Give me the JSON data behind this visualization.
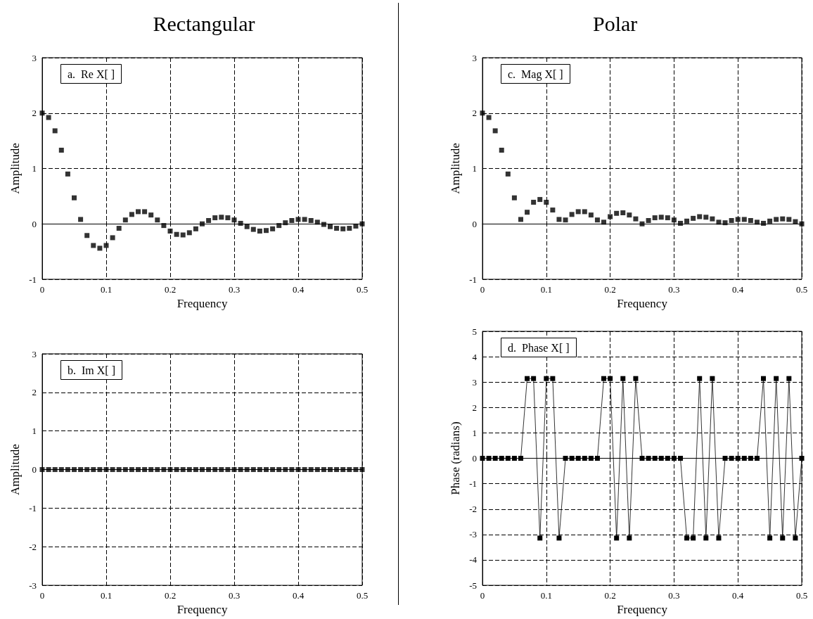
{
  "chart_data": [
    {
      "type": "scatter",
      "title": "a.  Re X[ ]",
      "annotations": [
        "Rectangular"
      ],
      "xlabel": "Frequency",
      "ylabel": "Amplitude",
      "marker": "square",
      "grid": true,
      "color": "#000000",
      "x": [
        0,
        0.01,
        0.02,
        0.03,
        0.04,
        0.05,
        0.06,
        0.07,
        0.08,
        0.09,
        0.1,
        0.11,
        0.12,
        0.13,
        0.14,
        0.15,
        0.16,
        0.17,
        0.18,
        0.19,
        0.2,
        0.21,
        0.22,
        0.23,
        0.24,
        0.25,
        0.26,
        0.27,
        0.28,
        0.29,
        0.3,
        0.31,
        0.32,
        0.33,
        0.34,
        0.35,
        0.36,
        0.37,
        0.38,
        0.39,
        0.4,
        0.41,
        0.42,
        0.43,
        0.44,
        0.45,
        0.46,
        0.47,
        0.48,
        0.49,
        0.5
      ],
      "values": [
        2,
        1.92,
        1.68,
        1.33,
        0.9,
        0.47,
        0.08,
        -0.21,
        -0.39,
        -0.44,
        -0.39,
        -0.25,
        -0.08,
        0.07,
        0.17,
        0.22,
        0.22,
        0.16,
        0.07,
        -0.03,
        -0.13,
        -0.19,
        -0.2,
        -0.16,
        -0.09,
        0,
        0.06,
        0.11,
        0.12,
        0.11,
        0.07,
        0.01,
        -0.05,
        -0.1,
        -0.13,
        -0.12,
        -0.09,
        -0.03,
        0.02,
        0.06,
        0.08,
        0.08,
        0.06,
        0.03,
        -0.01,
        -0.05,
        -0.08,
        -0.09,
        -0.08,
        -0.04,
        0
      ],
      "xlim": [
        0,
        0.5
      ],
      "xticks": [
        0,
        0.1,
        0.2,
        0.3,
        0.4,
        0.5
      ],
      "ylim": [
        -1,
        3
      ],
      "yticks": [
        -1,
        0,
        1,
        2,
        3
      ]
    },
    {
      "type": "scatter",
      "title": "c.  Mag X[ ]",
      "annotations": [
        "Polar"
      ],
      "xlabel": "Frequency",
      "ylabel": "Amplitude",
      "marker": "square",
      "grid": true,
      "color": "#000000",
      "x": [
        0,
        0.01,
        0.02,
        0.03,
        0.04,
        0.05,
        0.06,
        0.07,
        0.08,
        0.09,
        0.1,
        0.11,
        0.12,
        0.13,
        0.14,
        0.15,
        0.16,
        0.17,
        0.18,
        0.19,
        0.2,
        0.21,
        0.22,
        0.23,
        0.24,
        0.25,
        0.26,
        0.27,
        0.28,
        0.29,
        0.3,
        0.31,
        0.32,
        0.33,
        0.34,
        0.35,
        0.36,
        0.37,
        0.38,
        0.39,
        0.4,
        0.41,
        0.42,
        0.43,
        0.44,
        0.45,
        0.46,
        0.47,
        0.48,
        0.49,
        0.5
      ],
      "values": [
        2,
        1.92,
        1.68,
        1.33,
        0.9,
        0.47,
        0.08,
        0.21,
        0.39,
        0.44,
        0.39,
        0.25,
        0.08,
        0.07,
        0.17,
        0.22,
        0.22,
        0.16,
        0.07,
        0.03,
        0.13,
        0.19,
        0.2,
        0.16,
        0.09,
        0,
        0.06,
        0.11,
        0.12,
        0.11,
        0.07,
        0.01,
        0.05,
        0.1,
        0.13,
        0.12,
        0.09,
        0.03,
        0.02,
        0.06,
        0.08,
        0.08,
        0.06,
        0.03,
        0.01,
        0.05,
        0.08,
        0.09,
        0.08,
        0.04,
        0
      ],
      "xlim": [
        0,
        0.5
      ],
      "xticks": [
        0,
        0.1,
        0.2,
        0.3,
        0.4,
        0.5
      ],
      "ylim": [
        -1,
        3
      ],
      "yticks": [
        -1,
        0,
        1,
        2,
        3
      ]
    },
    {
      "type": "scatter",
      "title": "b.  Im X[ ]",
      "xlabel": "Frequency",
      "ylabel": "Amplitude",
      "marker": "square",
      "grid": true,
      "color": "#000000",
      "x": [
        0,
        0.01,
        0.02,
        0.03,
        0.04,
        0.05,
        0.06,
        0.07,
        0.08,
        0.09,
        0.1,
        0.11,
        0.12,
        0.13,
        0.14,
        0.15,
        0.16,
        0.17,
        0.18,
        0.19,
        0.2,
        0.21,
        0.22,
        0.23,
        0.24,
        0.25,
        0.26,
        0.27,
        0.28,
        0.29,
        0.3,
        0.31,
        0.32,
        0.33,
        0.34,
        0.35,
        0.36,
        0.37,
        0.38,
        0.39,
        0.4,
        0.41,
        0.42,
        0.43,
        0.44,
        0.45,
        0.46,
        0.47,
        0.48,
        0.49,
        0.5
      ],
      "values": [
        0,
        0,
        0,
        0,
        0,
        0,
        0,
        0,
        0,
        0,
        0,
        0,
        0,
        0,
        0,
        0,
        0,
        0,
        0,
        0,
        0,
        0,
        0,
        0,
        0,
        0,
        0,
        0,
        0,
        0,
        0,
        0,
        0,
        0,
        0,
        0,
        0,
        0,
        0,
        0,
        0,
        0,
        0,
        0,
        0,
        0,
        0,
        0,
        0,
        0,
        0
      ],
      "xlim": [
        0,
        0.5
      ],
      "xticks": [
        0,
        0.1,
        0.2,
        0.3,
        0.4,
        0.5
      ],
      "ylim": [
        -3,
        3
      ],
      "yticks": [
        -3,
        -2,
        -1,
        0,
        1,
        2,
        3
      ]
    },
    {
      "type": "line",
      "title": "d.  Phase X[ ]",
      "xlabel": "Frequency",
      "ylabel": "Phase (radians)",
      "marker": "square",
      "line_style": "solid",
      "grid": true,
      "color": "#000000",
      "x": [
        0,
        0.01,
        0.02,
        0.03,
        0.04,
        0.05,
        0.06,
        0.07,
        0.08,
        0.09,
        0.1,
        0.11,
        0.12,
        0.13,
        0.14,
        0.15,
        0.16,
        0.17,
        0.18,
        0.19,
        0.2,
        0.21,
        0.22,
        0.23,
        0.24,
        0.25,
        0.26,
        0.27,
        0.28,
        0.29,
        0.3,
        0.31,
        0.32,
        0.33,
        0.34,
        0.35,
        0.36,
        0.37,
        0.38,
        0.39,
        0.4,
        0.41,
        0.42,
        0.43,
        0.44,
        0.45,
        0.46,
        0.47,
        0.48,
        0.49,
        0.5
      ],
      "values": [
        0,
        0,
        0,
        0,
        0,
        0,
        0,
        3.14,
        3.14,
        -3.14,
        3.14,
        3.14,
        -3.14,
        0,
        0,
        0,
        0,
        0,
        0,
        3.14,
        3.14,
        -3.14,
        3.14,
        -3.14,
        3.14,
        0,
        0,
        0,
        0,
        0,
        0,
        0,
        -3.14,
        -3.14,
        3.14,
        -3.14,
        3.14,
        -3.14,
        0,
        0,
        0,
        0,
        0,
        0,
        3.14,
        -3.14,
        3.14,
        -3.14,
        3.14,
        -3.14,
        0
      ],
      "xlim": [
        0,
        0.5
      ],
      "xticks": [
        0,
        0.1,
        0.2,
        0.3,
        0.4,
        0.5
      ],
      "ylim": [
        -5,
        5
      ],
      "yticks": [
        -5,
        -4,
        -3,
        -2,
        -1,
        0,
        1,
        2,
        3,
        4,
        5
      ]
    }
  ]
}
